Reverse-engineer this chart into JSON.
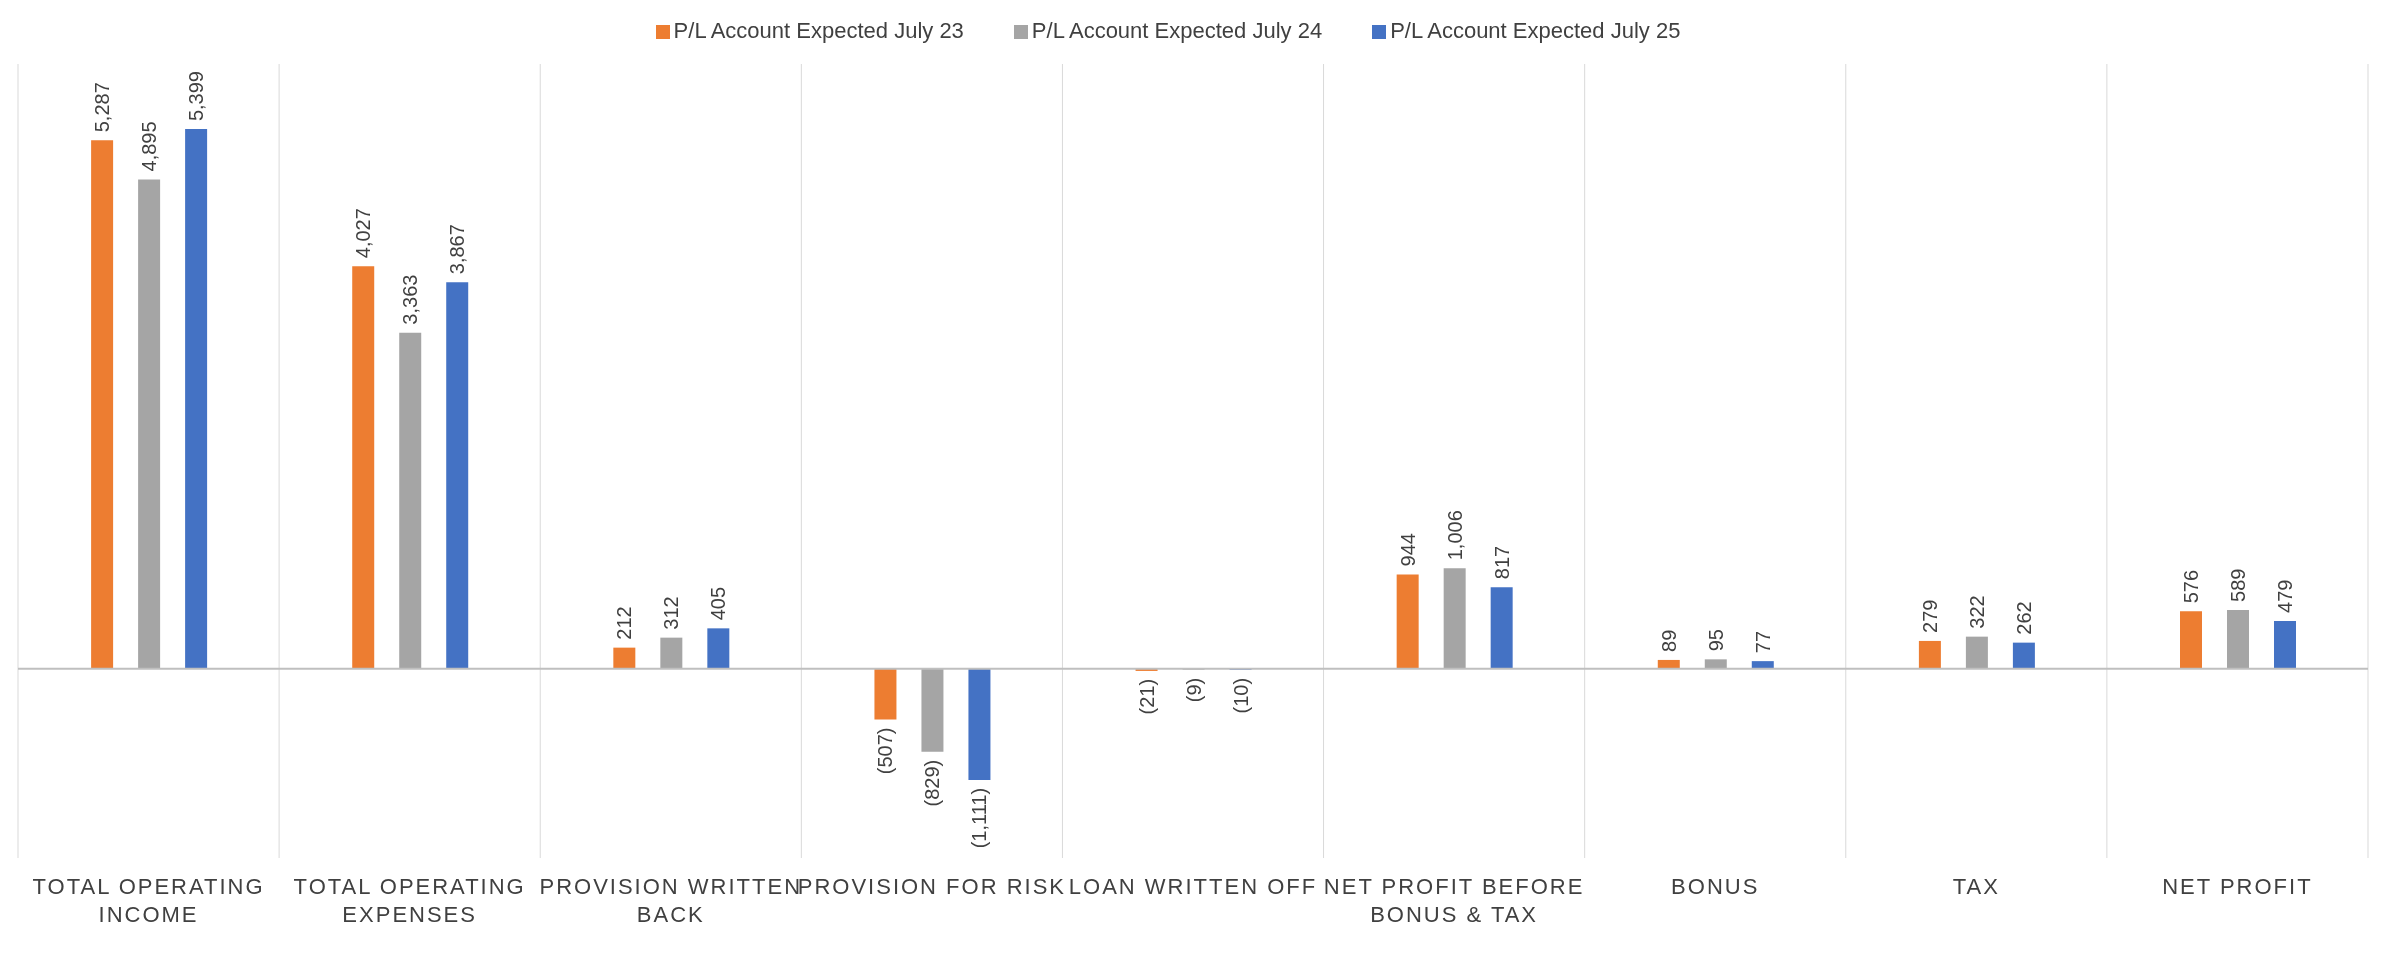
{
  "chart_data": {
    "type": "bar",
    "categories": [
      "TOTAL OPERATING INCOME",
      "TOTAL OPERATING EXPENSES",
      "PROVISION WRITTEN BACK",
      "PROVISION FOR RISK",
      "LOAN WRITTEN OFF",
      "NET PROFIT BEFORE BONUS & TAX",
      "BONUS",
      "TAX",
      "NET PROFIT"
    ],
    "series": [
      {
        "name": "P/L Account Expected July 23",
        "color": "#ed7d31",
        "values": [
          5287,
          4027,
          212,
          -507,
          -21,
          944,
          89,
          279,
          576
        ],
        "value_labels": [
          "5,287",
          "4,027",
          "212",
          "(507)",
          "(21)",
          "944",
          "89",
          "279",
          "576"
        ]
      },
      {
        "name": "P/L Account Expected July 24",
        "color": "#a5a5a5",
        "values": [
          4895,
          3363,
          312,
          -829,
          -9,
          1006,
          95,
          322,
          589
        ],
        "value_labels": [
          "4,895",
          "3,363",
          "312",
          "(829)",
          "(9)",
          "1,006",
          "95",
          "322",
          "589"
        ]
      },
      {
        "name": "P/L Account Expected July 25",
        "color": "#4472c4",
        "values": [
          5399,
          3867,
          405,
          -1111,
          -10,
          817,
          77,
          262,
          479
        ],
        "value_labels": [
          "5,399",
          "3,867",
          "405",
          "(1,111)",
          "(10)",
          "817",
          "77",
          "262",
          "479"
        ]
      }
    ],
    "grid": "x",
    "legend": "top"
  }
}
